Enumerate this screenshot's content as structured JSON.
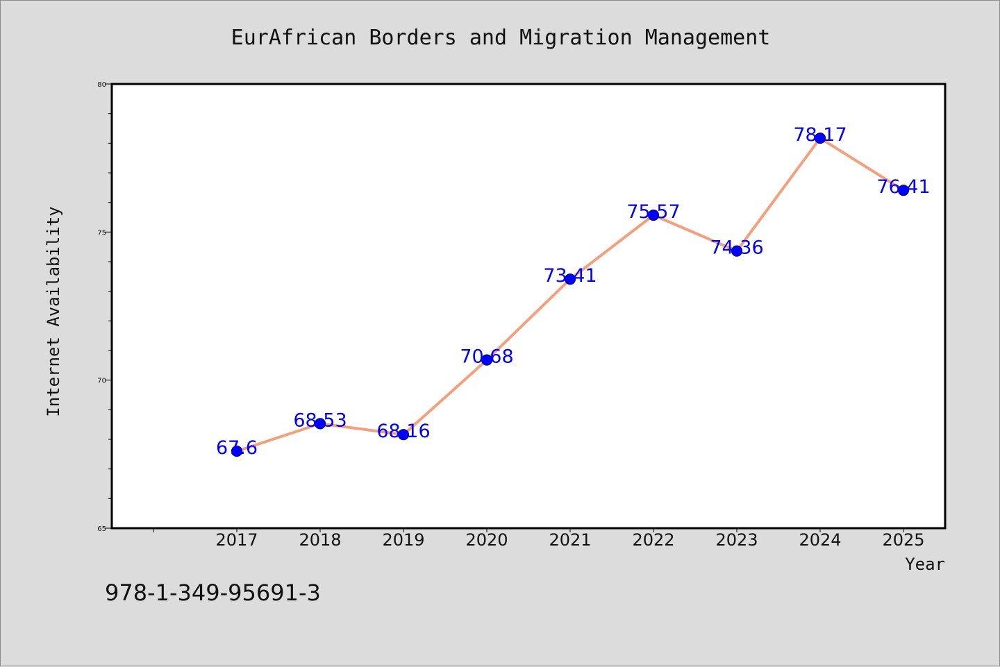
{
  "chart_data": {
    "type": "line",
    "title": "EurAfrican Borders and Migration Management",
    "xlabel": "Year",
    "ylabel": "Internet Availability",
    "categories": [
      "2017",
      "2018",
      "2019",
      "2020",
      "2021",
      "2022",
      "2023",
      "2024",
      "2025"
    ],
    "series": [
      {
        "values": [
          67.6,
          68.53,
          68.16,
          70.68,
          73.41,
          75.57,
          74.36,
          78.17,
          76.41
        ],
        "labels": [
          "67.6",
          "68.53",
          "68.16",
          "70.68",
          "73.41",
          "75.57",
          "74.36",
          "78.17",
          "76.41"
        ]
      }
    ],
    "ylim": [
      65,
      80
    ],
    "y_major_ticks": [
      "65",
      "70",
      "75",
      "80"
    ],
    "y_minor_step": 1,
    "grid": false,
    "legend": "none",
    "colors": {
      "line": "#f4a07c",
      "marker": "#0000ff",
      "marker_edge": "#000080",
      "data_label": "#0000ff",
      "plot_background": "#ffffff",
      "figure_background": "#dcdcdc"
    }
  },
  "footnote": "978-1-349-95691-3"
}
